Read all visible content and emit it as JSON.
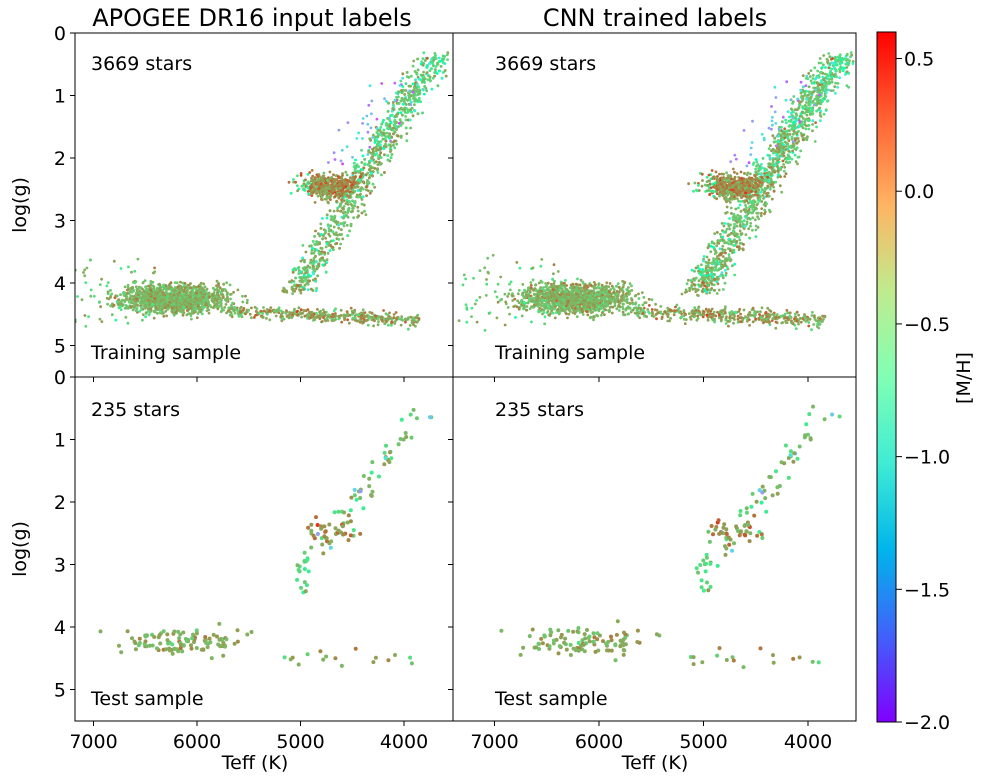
{
  "chart_data": [
    {
      "type": "scatter",
      "panel": "top-left",
      "title": "APOGEE DR16 input labels",
      "xlabel": "",
      "ylabel": "log(g)",
      "count_label": "3669 stars",
      "sample_label": "Training sample",
      "xlim": [
        7450,
        3450
      ],
      "ylim": [
        5.5,
        0
      ],
      "kind": "training",
      "colorby": "[M/H]"
    },
    {
      "type": "scatter",
      "panel": "top-right",
      "title": "CNN trained labels",
      "xlabel": "",
      "ylabel": "",
      "count_label": "3669 stars",
      "sample_label": "Training sample",
      "xlim": [
        7450,
        3450
      ],
      "ylim": [
        5.5,
        0
      ],
      "kind": "training",
      "colorby": "[M/H]"
    },
    {
      "type": "scatter",
      "panel": "bottom-left",
      "title": "",
      "xlabel": "Teff (K)",
      "ylabel": "log(g)",
      "count_label": "235 stars",
      "sample_label": "Test sample",
      "xlim": [
        7450,
        3450
      ],
      "ylim": [
        5.5,
        0
      ],
      "kind": "test",
      "colorby": "[M/H]"
    },
    {
      "type": "scatter",
      "panel": "bottom-right",
      "title": "",
      "xlabel": "Teff (K)",
      "ylabel": "",
      "count_label": "235 stars",
      "sample_label": "Test sample",
      "xlim": [
        7450,
        3450
      ],
      "ylim": [
        5.5,
        0
      ],
      "kind": "test",
      "colorby": "[M/H]"
    }
  ],
  "axes": {
    "x_ticks": [
      7000,
      6000,
      5000,
      4000
    ],
    "y_ticks": [
      0,
      1,
      2,
      3,
      4,
      5
    ]
  },
  "colorbar": {
    "label": "[M/H]",
    "colormap": "rainbow",
    "range": [
      -2.0,
      0.6
    ],
    "ticks": [
      0.5,
      0.0,
      -0.5,
      -1.0,
      -1.5,
      -2.0
    ],
    "tick_labels": [
      "0.5",
      "0.0",
      "−0.5",
      "−1.0",
      "−1.5",
      "−2.0"
    ]
  }
}
